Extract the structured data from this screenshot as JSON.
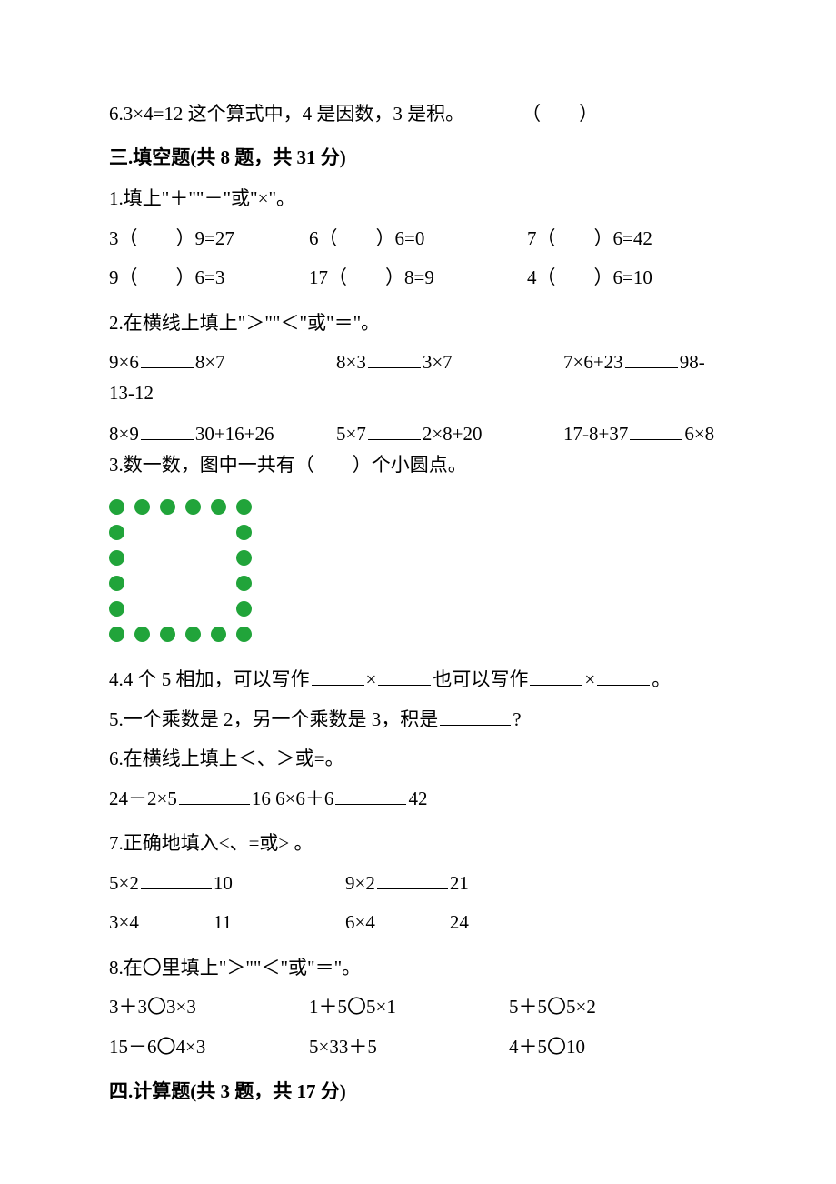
{
  "item6": "6.3×4=12 这个算式中，4 是因数，3 是积。　　　　（　　）",
  "sec3_title": "三.填空题(共 8 题，共 31 分)",
  "q1_stem": "1.填上\"＋\"\"－\"或\"×\"。",
  "q1_r1c1": "3（　　）9=27",
  "q1_r1c2": "6（　　）6=0",
  "q1_r1c3": "7（　　）6=42",
  "q1_r2c1": "9（　　）6=3",
  "q1_r2c2": "17（　　）8=9",
  "q1_r2c3": "4（　　）6=10",
  "q2_stem": "2.在横线上填上\"＞\"\"＜\"或\"＝\"。",
  "q2_r1_a_l": "9×6",
  "q2_r1_a_r": "8×7",
  "q2_r1_b_l": "8×3",
  "q2_r1_b_r": "3×7",
  "q2_r1_c_l": "7×6+23",
  "q2_r1_c_r": "98-",
  "q2_r1_c_cont": "13-12",
  "q2_r2_a_l": "8×9",
  "q2_r2_a_r": "30+16+26",
  "q2_r2_b_l": "5×7",
  "q2_r2_b_r": "2×8+20",
  "q2_r2_c_l": "17-8+37",
  "q2_r2_c_r": "6×8",
  "q3_stem": "3.数一数，图中一共有（　　）个小圆点。",
  "dots": {
    "color": "#21a43a",
    "grid": [
      [
        1,
        1,
        1,
        1,
        1,
        1
      ],
      [
        1,
        0,
        0,
        0,
        0,
        1
      ],
      [
        1,
        0,
        0,
        0,
        0,
        1
      ],
      [
        1,
        0,
        0,
        0,
        0,
        1
      ],
      [
        1,
        0,
        0,
        0,
        0,
        1
      ],
      [
        1,
        1,
        1,
        1,
        1,
        1
      ]
    ]
  },
  "q4_a": "4.4 个 5 相加，可以写作",
  "q4_b": "×",
  "q4_c": "也可以写作",
  "q4_d": "×",
  "q4_e": "。",
  "q5_a": "5.一个乘数是 2，另一个乘数是 3，积是",
  "q5_b": "?",
  "q6_stem": "6.在横线上填上＜、＞或=。",
  "q6_a_l": "24－2×5",
  "q6_a_r": "16",
  "q6_b_l": " 6×6＋6",
  "q6_b_r": "42",
  "q7_stem": "7.正确地填入<、=或> 。",
  "q7_r1_a_l": "5×2",
  "q7_r1_a_r": "10",
  "q7_r1_b_l": "9×2",
  "q7_r1_b_r": "21",
  "q7_r2_a_l": "3×4",
  "q7_r2_a_r": "11",
  "q7_r2_b_l": "6×4",
  "q7_r2_b_r": "24",
  "q8_stem": "8.在〇里填上\"＞\"\"＜\"或\"＝\"。",
  "q8_r1c1": "3＋3〇3×3",
  "q8_r1c2": "1＋5〇5×1",
  "q8_r1c3": "5＋5〇5×2",
  "q8_r2c1": "15－6〇4×3",
  "q8_r2c2": "5×33＋5",
  "q8_r2c3": "4＋5〇10",
  "sec4_title": "四.计算题(共 3 题，共 17 分)"
}
